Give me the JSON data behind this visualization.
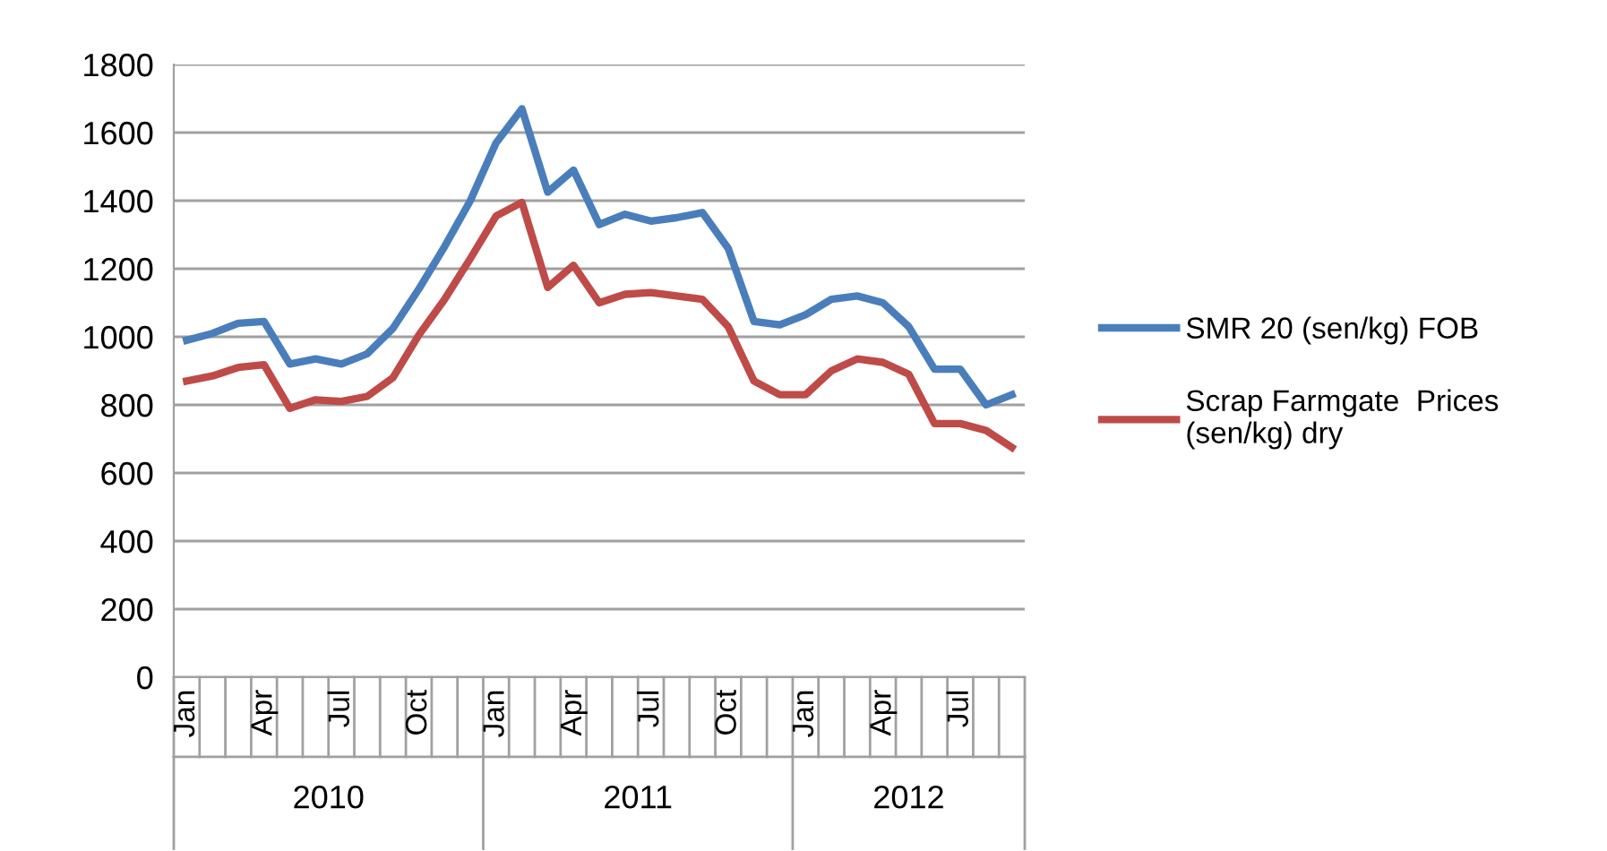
{
  "chart_data": {
    "type": "line",
    "categories": [
      "Jan",
      null,
      null,
      "Apr",
      null,
      null,
      "Jul",
      null,
      null,
      "Oct",
      null,
      null,
      "Jan",
      null,
      null,
      "Apr",
      null,
      null,
      "Jul",
      null,
      null,
      "Oct",
      null,
      null,
      "Jan",
      null,
      null,
      "Apr",
      null,
      null,
      "Jul",
      null,
      null
    ],
    "series": [
      {
        "name": "SMR 20 (sen/kg) FOB",
        "color": "#4a7ebb",
        "values": [
          990,
          1010,
          1040,
          1045,
          920,
          935,
          920,
          950,
          1025,
          1140,
          1265,
          1400,
          1570,
          1670,
          1425,
          1490,
          1330,
          1360,
          1340,
          1350,
          1365,
          1260,
          1045,
          1035,
          1065,
          1110,
          1120,
          1100,
          1030,
          905,
          905,
          800,
          830
        ]
      },
      {
        "name": "Scrap Farmgate  Prices\n(sen/kg) dry",
        "color": "#be4b48",
        "values": [
          870,
          885,
          910,
          918,
          790,
          815,
          810,
          825,
          880,
          1005,
          1110,
          1230,
          1355,
          1395,
          1145,
          1210,
          1100,
          1125,
          1130,
          1120,
          1110,
          1030,
          870,
          830,
          830,
          900,
          935,
          925,
          890,
          745,
          745,
          725,
          675
        ]
      }
    ],
    "annotations": [
      "2010",
      "2011",
      "2012"
    ],
    "ylim": [
      0,
      1800
    ],
    "yticks": [
      0,
      200,
      400,
      600,
      800,
      1000,
      1200,
      1400,
      1600,
      1800
    ],
    "grid": "y",
    "legend": "right",
    "marker": "none",
    "line_style": "solid"
  }
}
